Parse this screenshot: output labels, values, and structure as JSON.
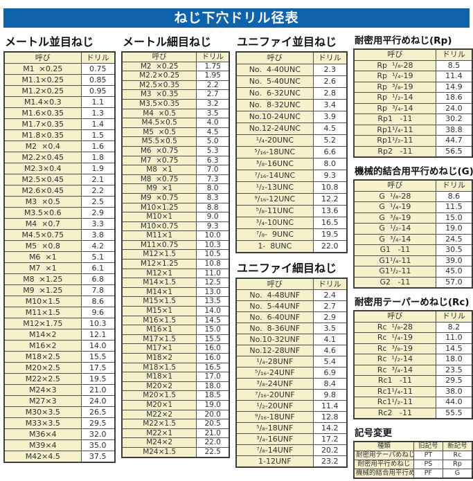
{
  "page_title": "ねじ下穴ドリル径表",
  "table_headers": {
    "name": "呼び",
    "drill": "ドリル"
  },
  "colors": {
    "banner_blue": "#0f62ac",
    "cell_cream": "#f5f1cd",
    "border": "#4f4f4f",
    "text": "#2f2f2f"
  },
  "sections": {
    "metric_coarse": {
      "title": "メートル並目ねじ",
      "rows": [
        [
          "M1  ×0.25",
          "0.75"
        ],
        [
          "M1.1×0.25",
          "0.85"
        ],
        [
          "M1.2×0.25",
          "0.95"
        ],
        [
          "M1.4×0.3",
          "1.1"
        ],
        [
          "M1.6×0.35",
          "1.3"
        ],
        [
          "M1.7×0.35",
          "1.4"
        ],
        [
          "M1.8×0.35",
          "1.5"
        ],
        [
          "M2  ×0.4",
          "1.6"
        ],
        [
          "M2.2×0.45",
          "1.8"
        ],
        [
          "M2.3×0.4",
          "1.9"
        ],
        [
          "M2.5×0.45",
          "2.1"
        ],
        [
          "M2.6×0.45",
          "2.2"
        ],
        [
          "M3  ×0.5",
          "2.5"
        ],
        [
          "M3.5×0.6",
          "2.9"
        ],
        [
          "M4  ×0.7",
          "3.3"
        ],
        [
          "M4.5×0.75",
          "3.8"
        ],
        [
          "M5  ×0.8",
          "4.2"
        ],
        [
          "M6  ×1",
          "5.1"
        ],
        [
          "M7  ×1",
          "6.1"
        ],
        [
          "M8  ×1.25",
          "6.8"
        ],
        [
          "M9  ×1.25",
          "7.8"
        ],
        [
          "M10×1.5",
          "8.6"
        ],
        [
          "M11×1.5",
          "9.6"
        ],
        [
          "M12×1.75",
          "10.3"
        ],
        [
          "M14×2",
          "12.1"
        ],
        [
          "M16×2",
          "14.0"
        ],
        [
          "M18×2.5",
          "15.5"
        ],
        [
          "M20×2.5",
          "17.5"
        ],
        [
          "M22×2.5",
          "19.5"
        ],
        [
          "M24×3",
          "21.0"
        ],
        [
          "M27×3",
          "24.0"
        ],
        [
          "M30×3.5",
          "26.5"
        ],
        [
          "M33×3.5",
          "29.5"
        ],
        [
          "M36×4",
          "32.0"
        ],
        [
          "M39×4",
          "35.0"
        ],
        [
          "M42×4.5",
          "37.5"
        ]
      ]
    },
    "metric_fine": {
      "title": "メートル細目ねじ",
      "rows": [
        [
          "M2  ×0.25",
          "1.75"
        ],
        [
          "M2.2×0.25",
          "1.95"
        ],
        [
          "M2.5×0.35",
          "2.2"
        ],
        [
          "M3  ×0.35",
          "2.7"
        ],
        [
          "M3.5×0.35",
          "3.2"
        ],
        [
          "M4  ×0.5",
          "3.5"
        ],
        [
          "M4.5×0.5",
          "4.0"
        ],
        [
          "M5  ×0.5",
          "4.5"
        ],
        [
          "M5.5×0.5",
          "5.0"
        ],
        [
          "M6  ×0.75",
          "5.3"
        ],
        [
          "M7  ×0.75",
          "6.3"
        ],
        [
          "M8  ×1",
          "7.0"
        ],
        [
          "M8  ×0.75",
          "7.3"
        ],
        [
          "M9  ×1",
          "8.0"
        ],
        [
          "M9  ×0.75",
          "8.3"
        ],
        [
          "M10×1.25",
          "8.8"
        ],
        [
          "M10×1",
          "9.0"
        ],
        [
          "M10×0.75",
          "9.3"
        ],
        [
          "M11×1",
          "10.0"
        ],
        [
          "M11×0.75",
          "10.3"
        ],
        [
          "M12×1.5",
          "10.5"
        ],
        [
          "M12×1.25",
          "10.8"
        ],
        [
          "M12×1",
          "11.0"
        ],
        [
          "M14×1.5",
          "12.5"
        ],
        [
          "M14×1",
          "13.0"
        ],
        [
          "M15×1.5",
          "13.5"
        ],
        [
          "M15×1",
          "14.0"
        ],
        [
          "M16×1.5",
          "14.5"
        ],
        [
          "M16×1",
          "15.0"
        ],
        [
          "M17×1.5",
          "15.5"
        ],
        [
          "M17×1",
          "16.0"
        ],
        [
          "M18×2",
          "16.0"
        ],
        [
          "M18×1.5",
          "16.5"
        ],
        [
          "M18×1",
          "17.0"
        ],
        [
          "M20×2",
          "18.0"
        ],
        [
          "M20×1.5",
          "18.5"
        ],
        [
          "M20×1",
          "19.0"
        ],
        [
          "M22×2",
          "20.0"
        ],
        [
          "M22×1.5",
          "20.5"
        ],
        [
          "M22×1",
          "21.0"
        ],
        [
          "M24×2",
          "22.0"
        ],
        [
          "M24×1.5",
          "22.5"
        ]
      ]
    },
    "unified_coarse": {
      "title": "ユニファイ並目ねじ",
      "rows": [
        [
          "No.  4-40UNC",
          "2.3"
        ],
        [
          "No.  5-40UNC",
          "2.6"
        ],
        [
          "No.  6-32UNC",
          "2.8"
        ],
        [
          "No.  8-32UNC",
          "3.4"
        ],
        [
          "No.10-24UNC",
          "3.9"
        ],
        [
          "No.12-24UNC",
          "4.5"
        ],
        [
          "¹/₄-20UNC",
          "5.2"
        ],
        [
          "⁵/₁₆-18UNC",
          "6.6"
        ],
        [
          "³/₈-16UNC",
          "8.0"
        ],
        [
          "⁷/₁₆-14UNC",
          "9.3"
        ],
        [
          "¹/₂-13UNC",
          "10.8"
        ],
        [
          "⁹/₁₆-12UNC",
          "12.2"
        ],
        [
          "⁵/₈-11UNC",
          "13.6"
        ],
        [
          "³/₄-10UNC",
          "16.5"
        ],
        [
          "⁷/₈-  9UNC",
          "19.5"
        ],
        [
          "1-  8UNC",
          "22.0"
        ]
      ]
    },
    "unified_fine": {
      "title": "ユニファイ細目ねじ",
      "rows": [
        [
          "No.  4-48UNF",
          "2.4"
        ],
        [
          "No.  5-44UNF",
          "2.7"
        ],
        [
          "No.  6-40UNF",
          "2.9"
        ],
        [
          "No.  8-36UNF",
          "3.5"
        ],
        [
          "No.10-32UNF",
          "4.1"
        ],
        [
          "No.12-28UNF",
          "4.6"
        ],
        [
          "¹/₄-28UNF",
          "5.4"
        ],
        [
          "⁵/₁₆-24UNF",
          "6.9"
        ],
        [
          "³/₈-24UNF",
          "8.4"
        ],
        [
          "⁷/₁₆-20UNF",
          "9.8"
        ],
        [
          "¹/₂-20UNF",
          "11.4"
        ],
        [
          "⁹/₁₆-18UNF",
          "12.8"
        ],
        [
          "⁵/₈-18UNF",
          "14.2"
        ],
        [
          "³/₄-16UNF",
          "17.2"
        ],
        [
          "⁷/₈-14UNF",
          "20.2"
        ],
        [
          "1-12UNF",
          "23.2"
        ]
      ]
    },
    "rp": {
      "title": "耐密用平行めねじ(Rp)",
      "rows": [
        [
          "Rp  ¹/₈-28",
          "8.5"
        ],
        [
          "Rp  ¹/₄-19",
          "11.4"
        ],
        [
          "Rp  ³/₈-19",
          "14.9"
        ],
        [
          "Rp  ¹/₂-14",
          "18.6"
        ],
        [
          "Rp  ³/₄-14",
          "24.0"
        ],
        [
          "Rp1   -11",
          "30.2"
        ],
        [
          "Rp1¹/₄-11",
          "38.8"
        ],
        [
          "Rp1¹/₂-11",
          "44.7"
        ],
        [
          "Rp2   -11",
          "56.5"
        ]
      ]
    },
    "g": {
      "title": "機械的結合用平行めねじ(G)",
      "rows": [
        [
          "G  ¹/₈-28",
          "8.6"
        ],
        [
          "G  ¹/₄-19",
          "11.5"
        ],
        [
          "G  ³/₈-19",
          "15.0"
        ],
        [
          "G  ¹/₂-14",
          "19.0"
        ],
        [
          "G  ³/₄-14",
          "24.5"
        ],
        [
          "G1   -11",
          "30.5"
        ],
        [
          "G1¹/₄-11",
          "39.0"
        ],
        [
          "G1¹/₂-11",
          "45.0"
        ],
        [
          "G2   -11",
          "57.0"
        ]
      ]
    },
    "rc": {
      "title": "耐密用テーパーめねじ(Rc)",
      "rows": [
        [
          "Rc  ¹/₈-28",
          "8.2"
        ],
        [
          "Rc  ¹/₄-19",
          "11.0"
        ],
        [
          "Rc  ³/₈-19",
          "14.5"
        ],
        [
          "Rc  ¹/₂-14",
          "18.0"
        ],
        [
          "Rc  ³/₄-14",
          "23.5"
        ],
        [
          "Rc1   -11",
          "29.5"
        ],
        [
          "Rc1¹/₄-11",
          "38.0"
        ],
        [
          "Rc1¹/₂-11",
          "44.0"
        ],
        [
          "Rc2   -11",
          "55.5"
        ]
      ]
    },
    "symbol_change": {
      "title": "記号変更",
      "headers": [
        "種類",
        "旧記号",
        "新記号"
      ],
      "rows": [
        [
          "耐密用テーパめねじ",
          "PT",
          "Rc"
        ],
        [
          "耐密用平行めねじ",
          "PS",
          "Rp"
        ],
        [
          "機械的結合用平行めねじ",
          "PF",
          "G"
        ]
      ]
    }
  }
}
